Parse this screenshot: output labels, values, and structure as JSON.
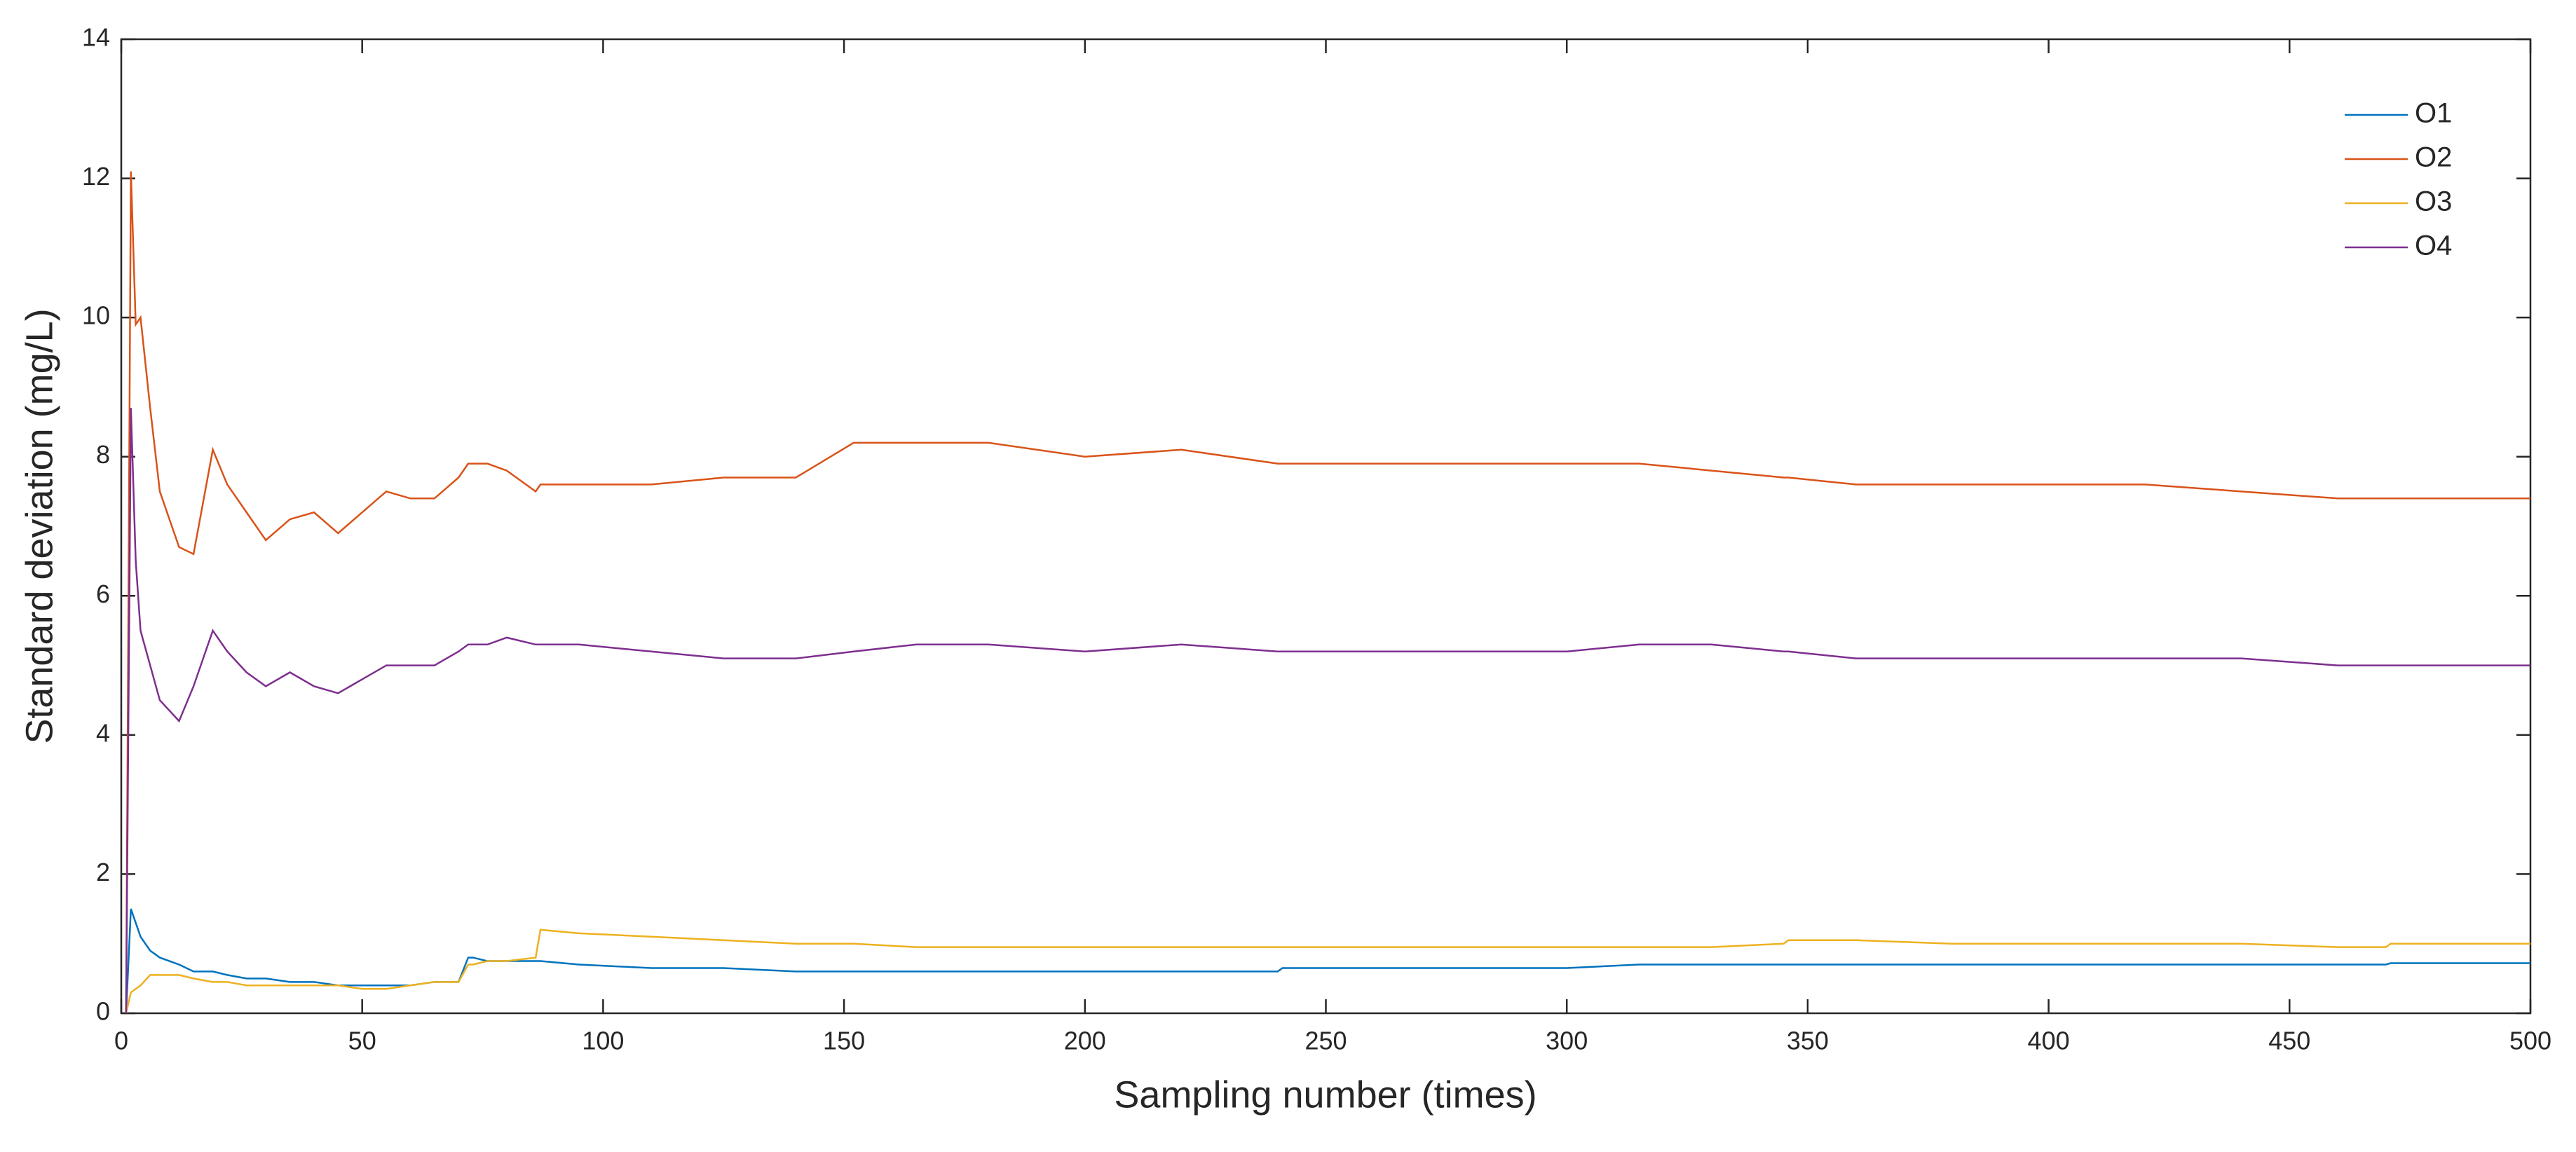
{
  "chart_data": {
    "type": "line",
    "x_label": "Sampling number (times)",
    "y_label": "Standard deviation (mg/L)",
    "x": [
      1,
      2,
      3,
      4,
      6,
      8,
      12,
      15,
      19,
      22,
      26,
      30,
      35,
      40,
      45,
      50,
      55,
      60,
      65,
      70,
      72,
      73,
      76,
      80,
      86,
      87,
      95,
      110,
      125,
      140,
      152,
      165,
      180,
      200,
      220,
      240,
      241,
      260,
      280,
      300,
      315,
      330,
      345,
      346,
      360,
      380,
      400,
      420,
      440,
      460,
      470,
      471,
      500
    ],
    "series": [
      {
        "name": "O1",
        "color": "#0072bd",
        "values": [
          0,
          1.5,
          1.3,
          1.1,
          0.9,
          0.8,
          0.7,
          0.6,
          0.6,
          0.55,
          0.5,
          0.5,
          0.45,
          0.45,
          0.4,
          0.4,
          0.4,
          0.4,
          0.45,
          0.45,
          0.8,
          0.8,
          0.75,
          0.75,
          0.75,
          0.75,
          0.7,
          0.65,
          0.65,
          0.6,
          0.6,
          0.6,
          0.6,
          0.6,
          0.6,
          0.6,
          0.65,
          0.65,
          0.65,
          0.65,
          0.7,
          0.7,
          0.7,
          0.7,
          0.7,
          0.7,
          0.7,
          0.7,
          0.7,
          0.7,
          0.7,
          0.72,
          0.72
        ]
      },
      {
        "name": "O2",
        "color": "#d95319",
        "values": [
          0,
          12.1,
          9.9,
          10,
          8.7,
          7.5,
          6.7,
          6.6,
          8.1,
          7.6,
          7.2,
          6.8,
          7.1,
          7.2,
          6.9,
          7.2,
          7.5,
          7.4,
          7.4,
          7.7,
          7.9,
          7.9,
          7.9,
          7.8,
          7.5,
          7.6,
          7.6,
          7.6,
          7.7,
          7.7,
          8.2,
          8.2,
          8.2,
          8.0,
          8.1,
          7.9,
          7.9,
          7.9,
          7.9,
          7.9,
          7.9,
          7.8,
          7.7,
          7.7,
          7.6,
          7.6,
          7.6,
          7.6,
          7.5,
          7.4,
          7.4,
          7.4,
          7.4
        ]
      },
      {
        "name": "O3",
        "color": "#edb120",
        "values": [
          0,
          0.3,
          0.35,
          0.4,
          0.55,
          0.55,
          0.55,
          0.5,
          0.45,
          0.45,
          0.4,
          0.4,
          0.4,
          0.4,
          0.4,
          0.35,
          0.35,
          0.4,
          0.45,
          0.45,
          0.7,
          0.7,
          0.75,
          0.75,
          0.8,
          1.2,
          1.15,
          1.1,
          1.05,
          1.0,
          1.0,
          0.95,
          0.95,
          0.95,
          0.95,
          0.95,
          0.95,
          0.95,
          0.95,
          0.95,
          0.95,
          0.95,
          1.0,
          1.05,
          1.05,
          1.0,
          1.0,
          1.0,
          1.0,
          0.95,
          0.95,
          1.0,
          1.0
        ]
      },
      {
        "name": "O4",
        "color": "#7e2f8e",
        "values": [
          0,
          8.7,
          6.5,
          5.5,
          5.0,
          4.5,
          4.2,
          4.7,
          5.5,
          5.2,
          4.9,
          4.7,
          4.9,
          4.7,
          4.6,
          4.8,
          5.0,
          5.0,
          5.0,
          5.2,
          5.3,
          5.3,
          5.3,
          5.4,
          5.3,
          5.3,
          5.3,
          5.2,
          5.1,
          5.1,
          5.2,
          5.3,
          5.3,
          5.2,
          5.3,
          5.2,
          5.2,
          5.2,
          5.2,
          5.2,
          5.3,
          5.3,
          5.2,
          5.2,
          5.1,
          5.1,
          5.1,
          5.1,
          5.1,
          5.0,
          5.0,
          5.0,
          5.0
        ]
      }
    ],
    "xlim": [
      0,
      500
    ],
    "xticks": [
      0,
      50,
      100,
      150,
      200,
      250,
      300,
      350,
      400,
      450,
      500
    ],
    "ylim": [
      0,
      14
    ],
    "yticks": [
      0,
      2,
      4,
      6,
      8,
      10,
      12,
      14
    ],
    "grid": false,
    "legend_location": "northeast"
  }
}
